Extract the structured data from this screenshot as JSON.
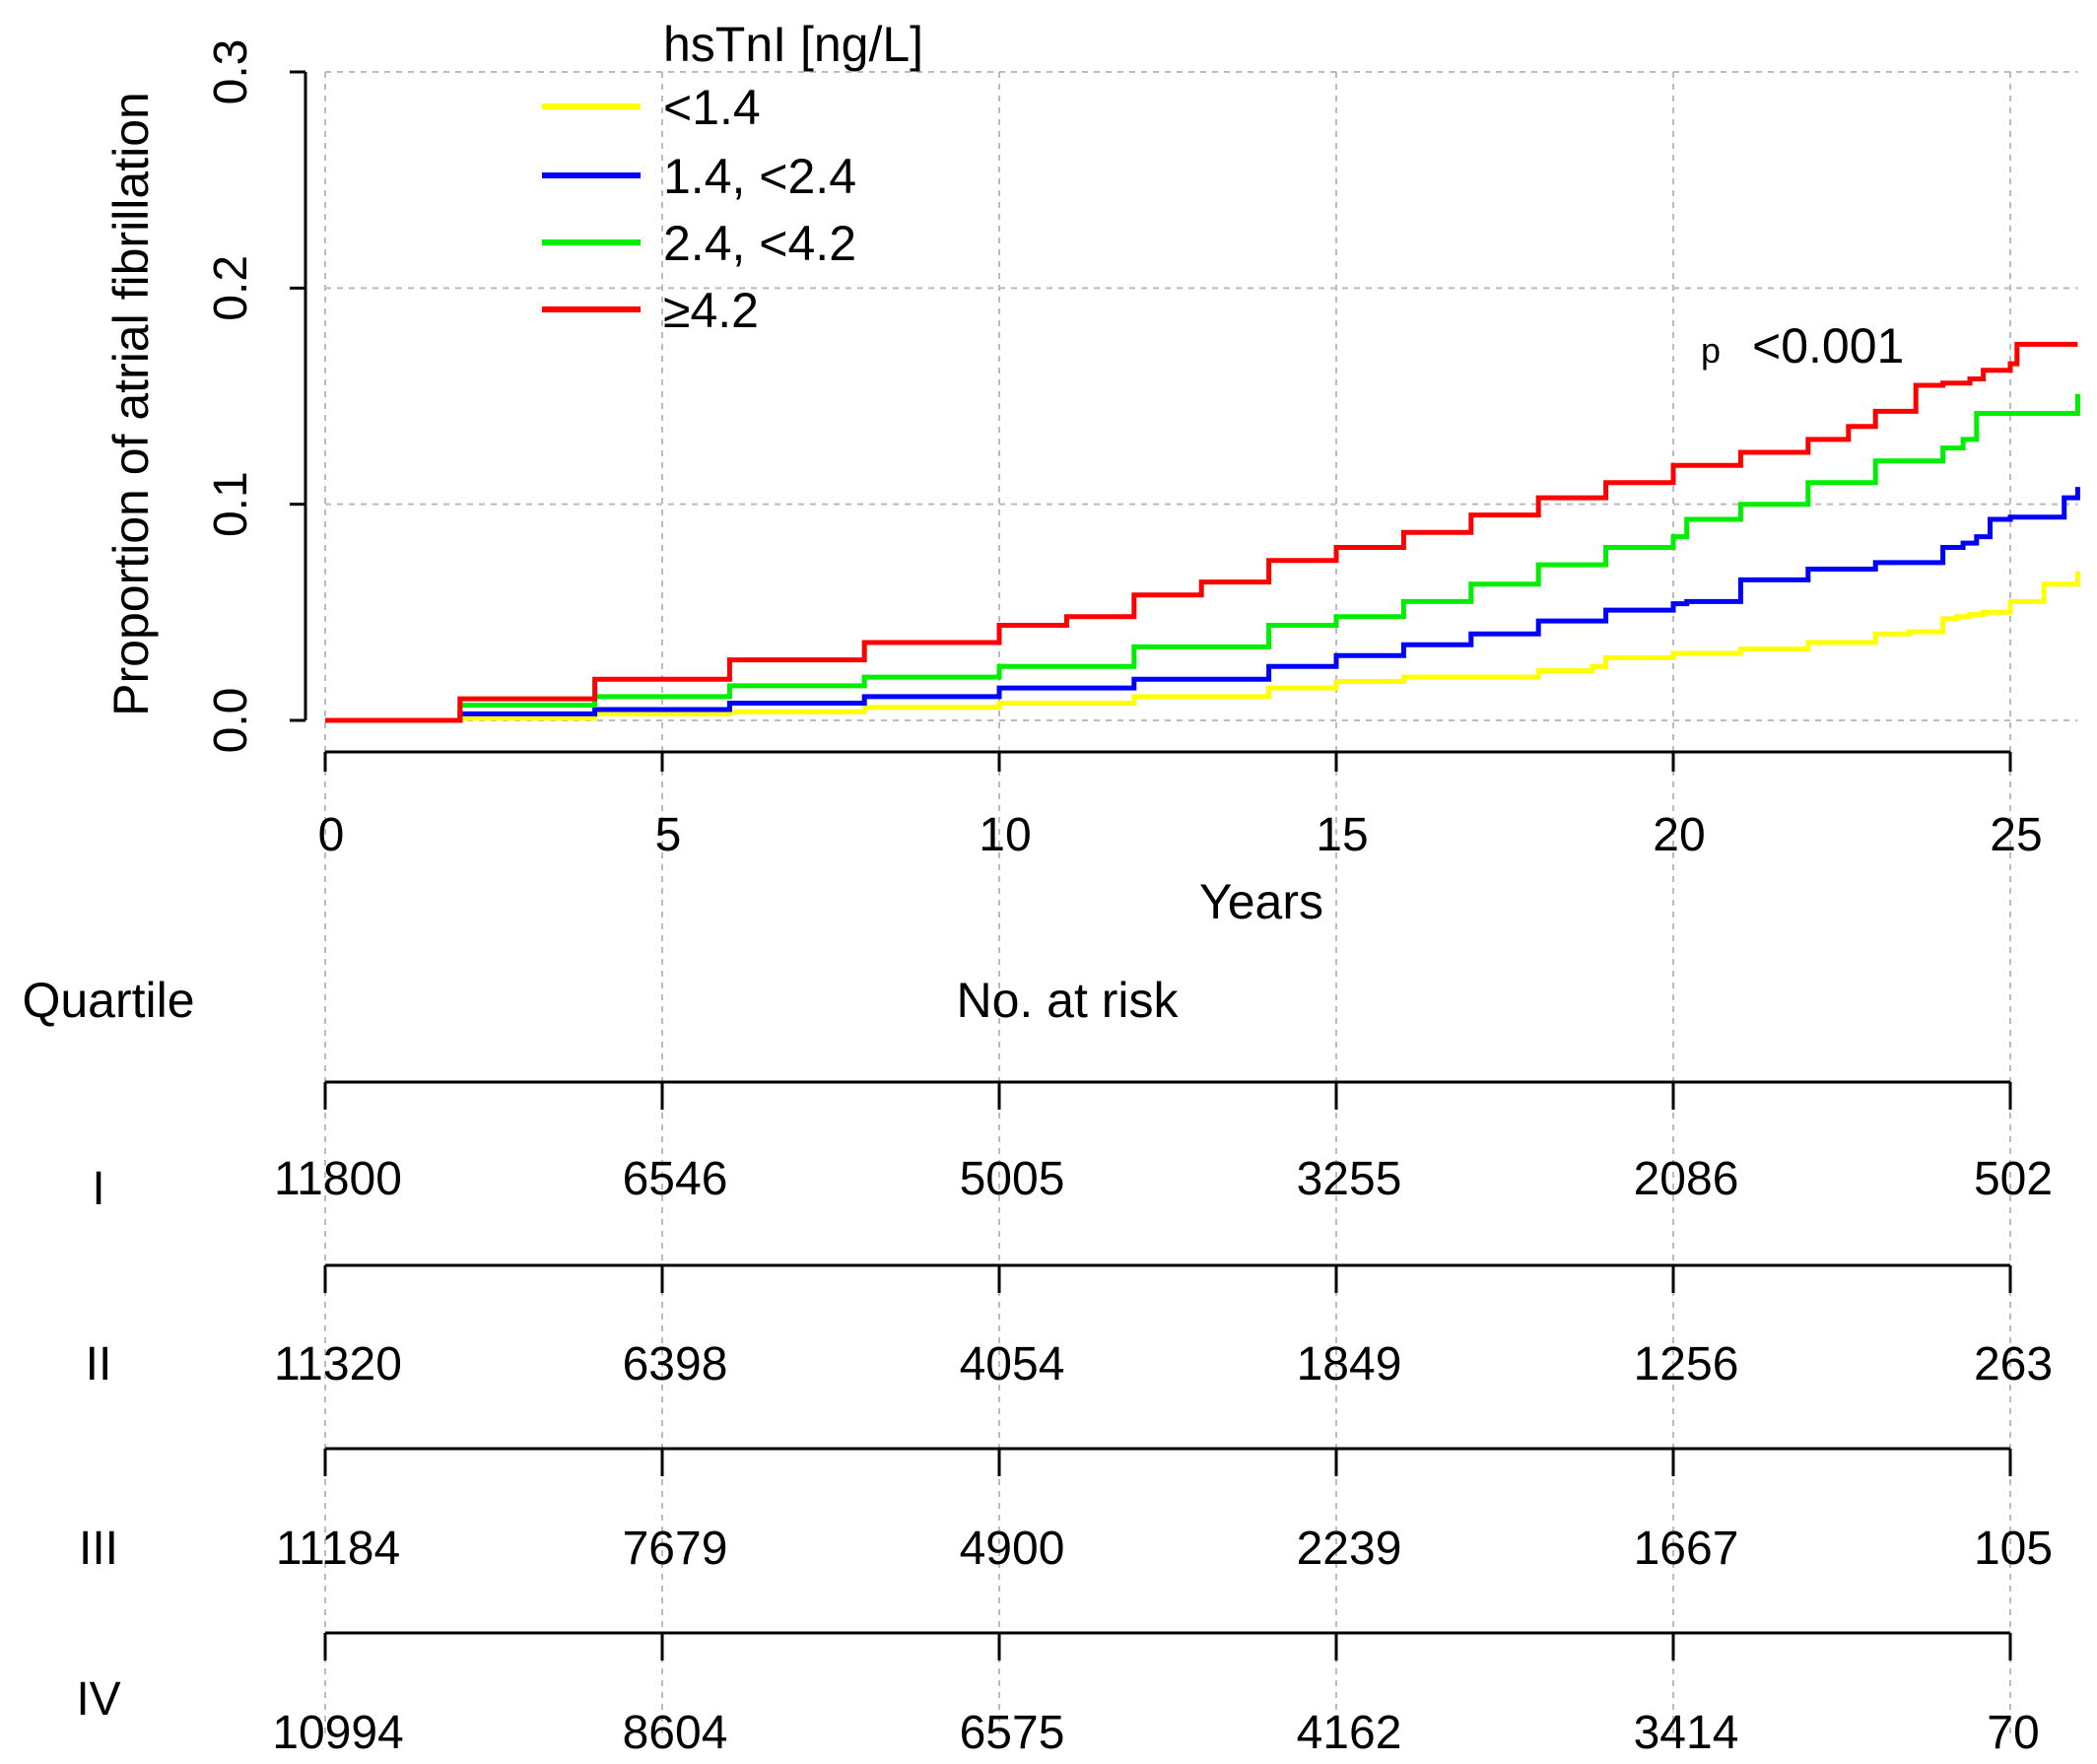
{
  "chart_data": {
    "type": "line",
    "xlabel": "Years",
    "ylabel": "Proportion of atrial fibrillation",
    "xlim": [
      0,
      26
    ],
    "ylim": [
      0,
      0.3
    ],
    "x_ticks": [
      0,
      5,
      10,
      15,
      20,
      25
    ],
    "x_tick_labels": [
      "0",
      "5",
      "10",
      "15",
      "20",
      "25"
    ],
    "y_ticks": [
      0,
      0.1,
      0.2,
      0.3
    ],
    "y_tick_labels": [
      "0.0",
      "0.1",
      "0.2",
      "0.3"
    ],
    "grid": true,
    "legend": {
      "title": "hsTnI [ng/L]",
      "position": "top-left"
    },
    "annotation": {
      "prefix": "p",
      "value": "<0.001"
    },
    "series": [
      {
        "name": "<1.4",
        "color": "#ffff00",
        "x": [
          0,
          2,
          4,
          6,
          8,
          10,
          12,
          14,
          15,
          16,
          18,
          18.8,
          19,
          20,
          21,
          22,
          23,
          23.5,
          24,
          24.2,
          24.4,
          24.6,
          25,
          25.5,
          26
        ],
        "y": [
          0,
          0.001,
          0.003,
          0.004,
          0.006,
          0.008,
          0.011,
          0.015,
          0.018,
          0.02,
          0.023,
          0.025,
          0.029,
          0.031,
          0.033,
          0.036,
          0.04,
          0.041,
          0.047,
          0.048,
          0.049,
          0.05,
          0.055,
          0.063,
          0.069
        ]
      },
      {
        "name": "1.4, <2.4",
        "color": "#0000ff",
        "x": [
          0,
          2,
          4,
          6,
          8,
          10,
          12,
          14,
          15,
          16,
          17,
          18,
          19,
          20,
          20.2,
          21,
          22,
          23,
          24,
          24.3,
          24.5,
          24.7,
          25,
          25.8,
          26
        ],
        "y": [
          0,
          0.003,
          0.005,
          0.008,
          0.011,
          0.015,
          0.019,
          0.025,
          0.03,
          0.035,
          0.04,
          0.046,
          0.051,
          0.054,
          0.055,
          0.065,
          0.07,
          0.073,
          0.08,
          0.082,
          0.085,
          0.093,
          0.094,
          0.103,
          0.108
        ]
      },
      {
        "name": "2.4, <4.2",
        "color": "#00ee00",
        "x": [
          0,
          2,
          4,
          6,
          8,
          10,
          12,
          14,
          15,
          16,
          17,
          18,
          19,
          20,
          20.2,
          21,
          22,
          23,
          24,
          24.3,
          24.5,
          25,
          26
        ],
        "y": [
          0,
          0.007,
          0.011,
          0.016,
          0.02,
          0.025,
          0.034,
          0.044,
          0.048,
          0.055,
          0.063,
          0.072,
          0.08,
          0.085,
          0.093,
          0.1,
          0.11,
          0.12,
          0.126,
          0.13,
          0.142,
          0.142,
          0.151
        ]
      },
      {
        "name": "≥4.2",
        "color": "#ff0000",
        "x": [
          0,
          2,
          4,
          6,
          8,
          10,
          11,
          12,
          13,
          14,
          15,
          16,
          17,
          18,
          19,
          20,
          21,
          22,
          22.6,
          23,
          23.6,
          24,
          24.4,
          24.6,
          25,
          25.1,
          26
        ],
        "y": [
          0,
          0.01,
          0.019,
          0.028,
          0.036,
          0.044,
          0.048,
          0.058,
          0.064,
          0.074,
          0.08,
          0.087,
          0.095,
          0.103,
          0.11,
          0.118,
          0.124,
          0.13,
          0.136,
          0.143,
          0.155,
          0.156,
          0.158,
          0.162,
          0.165,
          0.174,
          0.174
        ]
      }
    ],
    "risk_table": {
      "group_label": "Quartile",
      "title": "No. at risk",
      "x": [
        0,
        5,
        10,
        15,
        20,
        25
      ],
      "rows": [
        {
          "label": "I",
          "counts": [
            "11800",
            "6546",
            "5005",
            "3255",
            "2086",
            "502"
          ]
        },
        {
          "label": "II",
          "counts": [
            "11320",
            "6398",
            "4054",
            "1849",
            "1256",
            "263"
          ]
        },
        {
          "label": "III",
          "counts": [
            "11184",
            "7679",
            "4900",
            "2239",
            "1667",
            "105"
          ]
        },
        {
          "label": "IV",
          "counts": [
            "10994",
            "8604",
            "6575",
            "4162",
            "3414",
            "70"
          ]
        }
      ]
    }
  }
}
